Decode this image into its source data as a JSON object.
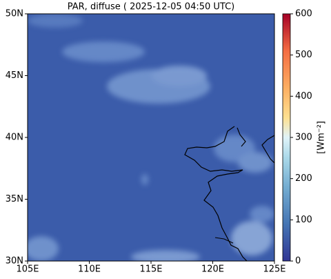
{
  "title": "PAR, diffuse ( 2025-12-05 04:50 UTC)",
  "map": {
    "xlim": [
      105,
      125
    ],
    "ylim": [
      30,
      50
    ],
    "xticks": [
      {
        "value": 105,
        "label": "105E"
      },
      {
        "value": 110,
        "label": "110E"
      },
      {
        "value": 115,
        "label": "115E"
      },
      {
        "value": 120,
        "label": "120E"
      },
      {
        "value": 125,
        "label": "125E"
      }
    ],
    "yticks": [
      {
        "value": 30,
        "label": "30N"
      },
      {
        "value": 35,
        "label": "35N"
      },
      {
        "value": 40,
        "label": "40N"
      },
      {
        "value": 45,
        "label": "45N"
      },
      {
        "value": 50,
        "label": "50N"
      }
    ]
  },
  "colorbar": {
    "label": "[Wm⁻²]",
    "lim": [
      0,
      600
    ],
    "ticks": [
      0,
      100,
      200,
      300,
      400,
      500,
      600
    ]
  }
}
